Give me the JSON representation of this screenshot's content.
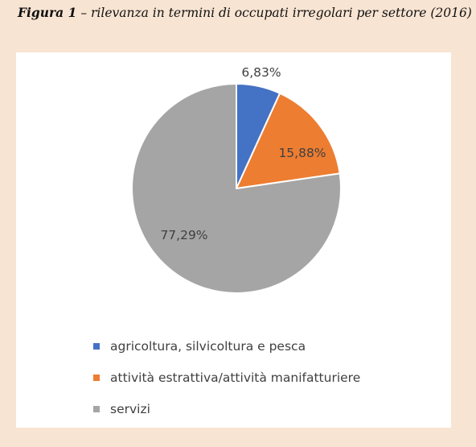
{
  "caption": {
    "label": "Figura 1",
    "text": " – rilevanza in termini di occupati irregolari per settore (2016)"
  },
  "chart_data": {
    "type": "pie",
    "title": "",
    "categories": [
      "agricoltura, silvicoltura e pesca",
      "attività estrattiva/attività manifatturiere",
      "servizi"
    ],
    "values": [
      6.83,
      15.88,
      77.29
    ],
    "data_labels": [
      "6,83%",
      "15,88%",
      "77,29%"
    ],
    "colors": [
      "#4472c4",
      "#ed7d31",
      "#a5a5a5"
    ],
    "start_angle_deg": 0,
    "direction": "clockwise",
    "legend_position": "bottom"
  }
}
